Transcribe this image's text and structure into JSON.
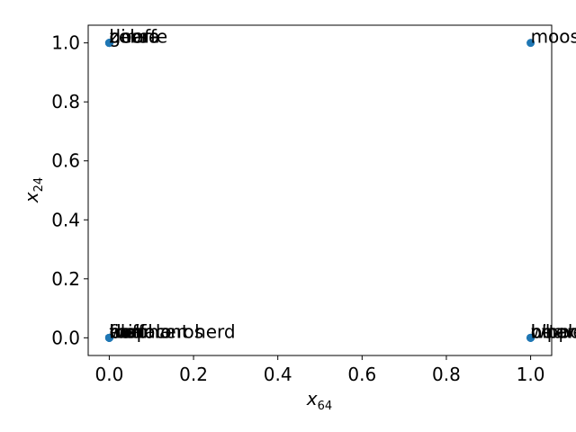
{
  "chart_data": {
    "type": "scatter",
    "title": "",
    "xlabel": {
      "base": "x",
      "sub": "64"
    },
    "ylabel": {
      "base": "x",
      "sub": "24"
    },
    "xlim": [
      -0.05,
      1.05
    ],
    "ylim": [
      -0.06,
      1.06
    ],
    "xticks": [
      0.0,
      0.2,
      0.4,
      0.6,
      0.8,
      1.0
    ],
    "yticks": [
      0.0,
      0.2,
      0.4,
      0.6,
      0.8,
      1.0
    ],
    "xtick_labels": [
      "0.0",
      "0.2",
      "0.4",
      "0.6",
      "0.8",
      "1.0"
    ],
    "ytick_labels": [
      "0.0",
      "0.2",
      "0.4",
      "0.6",
      "0.8",
      "1.0"
    ],
    "grid": false,
    "legend": "none",
    "point_color": "#1f77b4",
    "points": [
      {
        "x": 0,
        "y": 1,
        "label": "giraffe"
      },
      {
        "x": 0,
        "y": 1,
        "label": "zebra"
      },
      {
        "x": 0,
        "y": 1,
        "label": "horse"
      },
      {
        "x": 0,
        "y": 1,
        "label": "deer"
      },
      {
        "x": 1,
        "y": 1,
        "label": "moose"
      },
      {
        "x": 0,
        "y": 0,
        "label": "elephant herd"
      },
      {
        "x": 0,
        "y": 0,
        "label": "rhinoceros"
      },
      {
        "x": 0,
        "y": 0,
        "label": "buffalo"
      },
      {
        "x": 0,
        "y": 0,
        "label": "lion"
      },
      {
        "x": 0,
        "y": 0,
        "label": "bear"
      },
      {
        "x": 0,
        "y": 0,
        "label": "wolf"
      },
      {
        "x": 0,
        "y": 0,
        "label": "fox"
      },
      {
        "x": 0,
        "y": 0,
        "label": "ox"
      },
      {
        "x": 1,
        "y": 0,
        "label": "hippo"
      },
      {
        "x": 1,
        "y": 0,
        "label": "whale"
      },
      {
        "x": 1,
        "y": 0,
        "label": "beaver"
      },
      {
        "x": 1,
        "y": 0,
        "label": "otter"
      }
    ]
  }
}
